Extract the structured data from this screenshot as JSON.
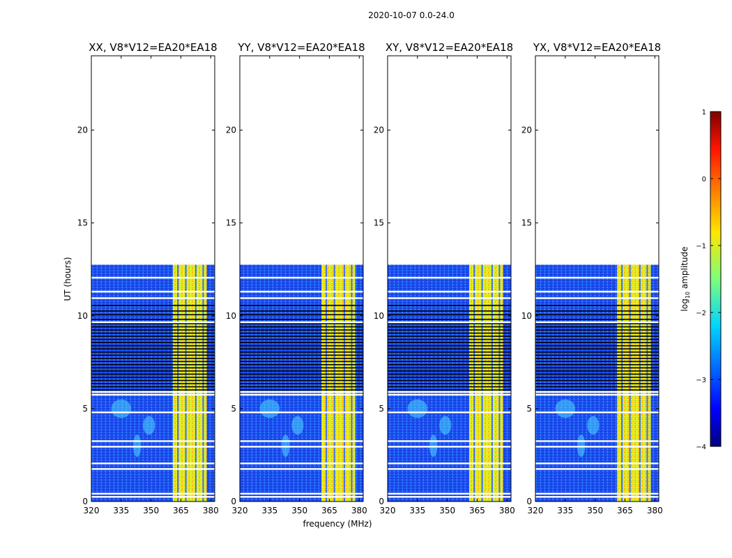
{
  "chart_data": {
    "type": "heatmap",
    "suptitle": "2020-10-07 0.0-24.0",
    "xlabel": "frequency (MHz)",
    "ylabel": "UT (hours)",
    "xlim": [
      320,
      382
    ],
    "ylim": [
      0,
      24
    ],
    "xticks": [
      "320",
      "335",
      "350",
      "365",
      "380"
    ],
    "yticks": [
      "0",
      "5",
      "10",
      "15",
      "20"
    ],
    "panels": [
      {
        "title": "XX, V8*V12=EA20*EA18"
      },
      {
        "title": "YY, V8*V12=EA20*EA18"
      },
      {
        "title": "XY, V8*V12=EA20*EA18"
      },
      {
        "title": "YX, V8*V12=EA20*EA18"
      }
    ],
    "data_extent_hours": [
      0,
      12.75
    ],
    "bright_band_mhz": [
      361,
      378
    ],
    "colorbar": {
      "label": "log10 amplitude",
      "label_base": "log",
      "label_sub": "10",
      "label_rest": " amplitude",
      "range": [
        -4,
        1
      ],
      "ticks": [
        "1",
        "0",
        "−1",
        "−2",
        "−3",
        "−4"
      ],
      "colormap": "jet"
    }
  }
}
